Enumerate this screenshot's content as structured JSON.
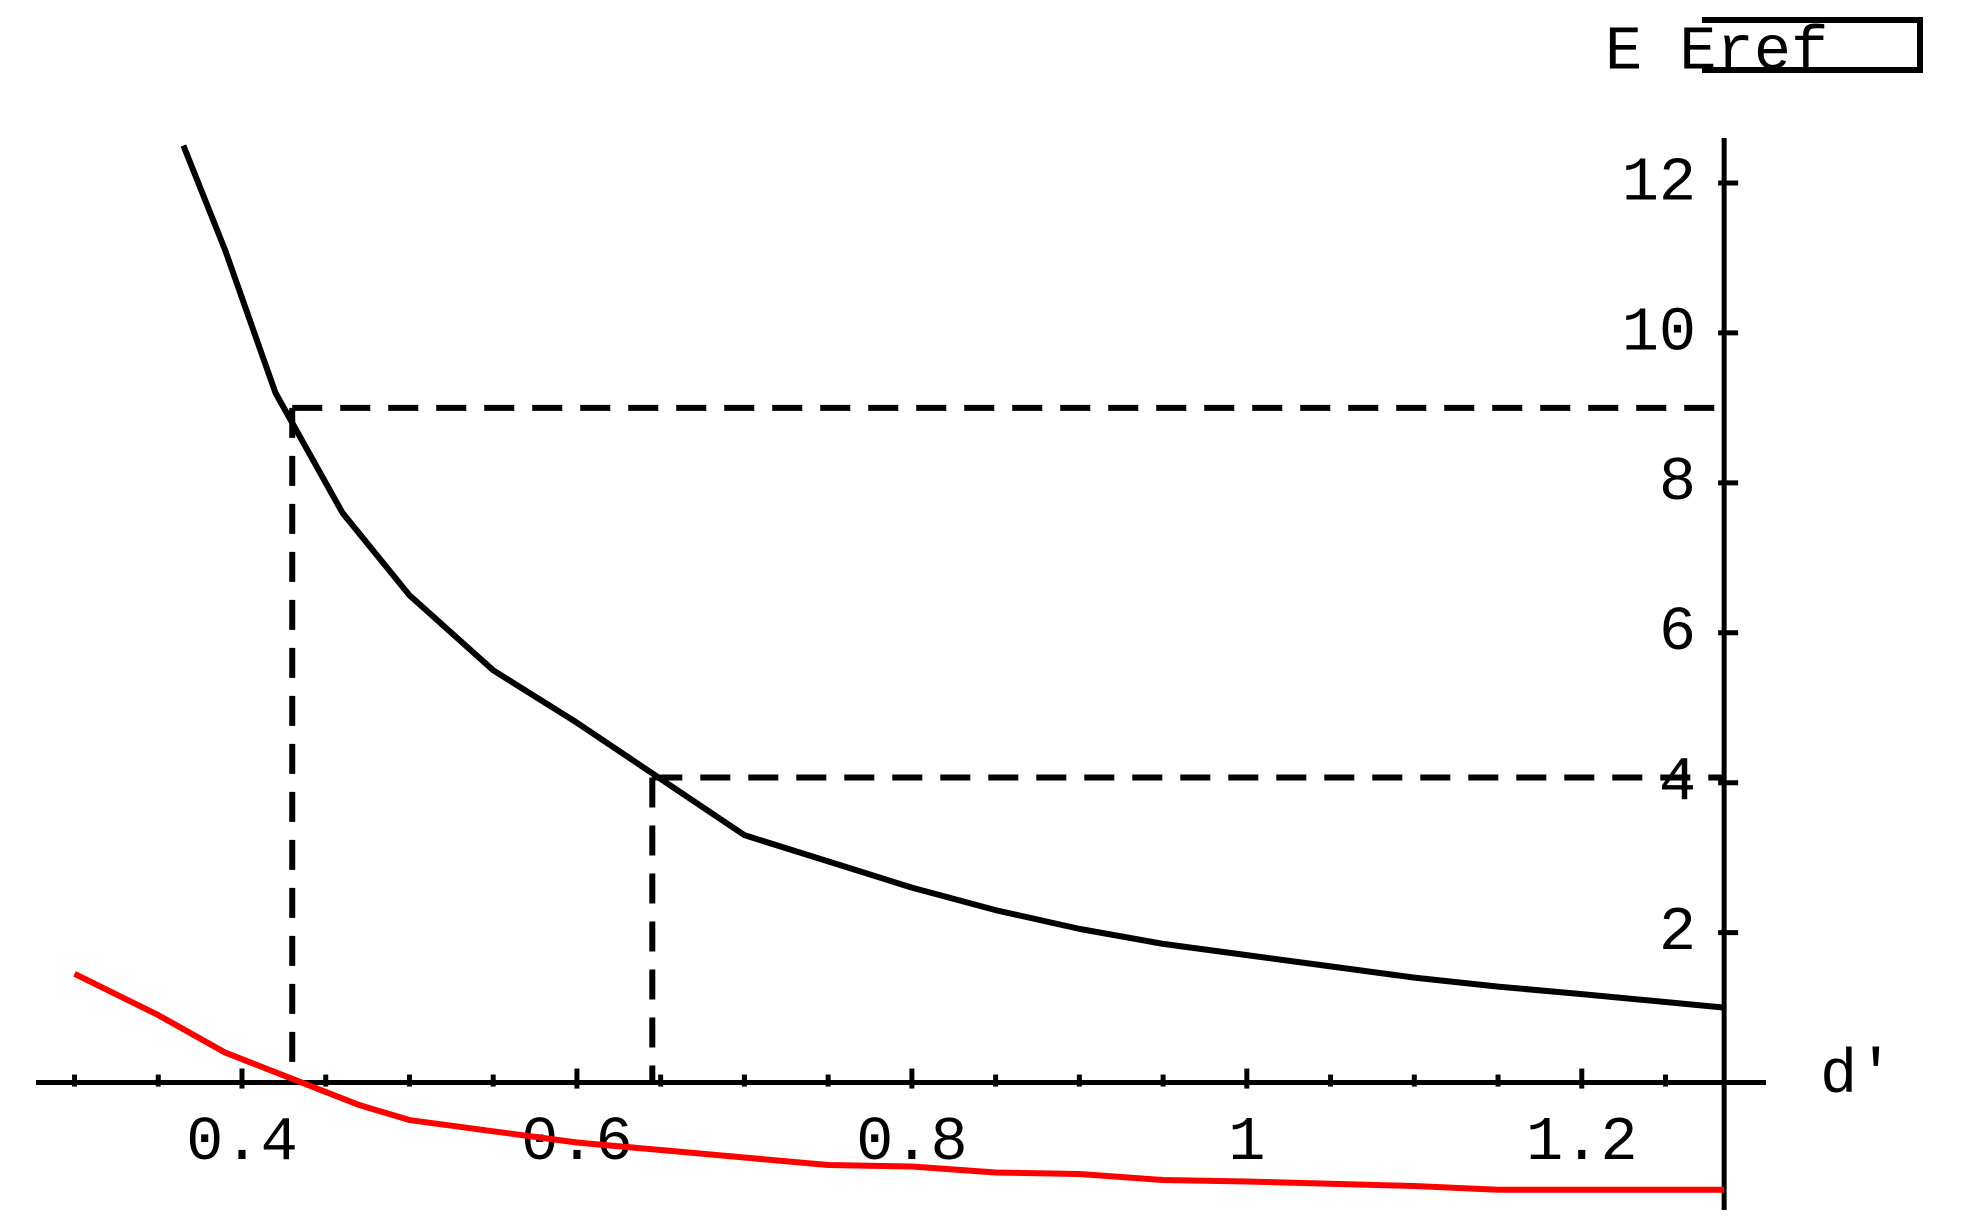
{
  "chart_data": {
    "type": "line",
    "x_label": "d'",
    "y_label": "E Eref",
    "xlim": [
      0.277,
      1.31
    ],
    "ylim": [
      -1.7,
      12.6
    ],
    "xticks": [
      0.4,
      0.6,
      0.8,
      1,
      1.2
    ],
    "xminorticks": [
      0.3,
      0.35,
      0.45,
      0.5,
      0.55,
      0.65,
      0.7,
      0.75,
      0.85,
      0.9,
      0.95,
      1.05,
      1.1,
      1.15,
      1.25
    ],
    "yticks": [
      2,
      4,
      6,
      8,
      10,
      12
    ],
    "axes_origin": [
      1.285,
      0
    ],
    "series": [
      {
        "color": "#000000",
        "x": [
          0.365,
          0.39,
          0.42,
          0.46,
          0.5,
          0.55,
          0.6,
          0.64,
          0.7,
          0.75,
          0.8,
          0.85,
          0.9,
          0.95,
          1.0,
          1.05,
          1.1,
          1.15,
          1.2,
          1.285
        ],
        "values": [
          12.5,
          11.1,
          9.2,
          7.6,
          6.5,
          5.5,
          4.8,
          4.2,
          3.3,
          2.95,
          2.6,
          2.3,
          2.05,
          1.85,
          1.7,
          1.55,
          1.4,
          1.28,
          1.18,
          1.0
        ]
      },
      {
        "color": "#ff0000",
        "x": [
          0.3,
          0.35,
          0.39,
          0.43,
          0.47,
          0.5,
          0.55,
          0.6,
          0.65,
          0.7,
          0.75,
          0.8,
          0.85,
          0.9,
          0.95,
          1.0,
          1.05,
          1.1,
          1.15,
          1.2,
          1.285
        ],
        "values": [
          1.45,
          0.9,
          0.4,
          0.05,
          -0.3,
          -0.5,
          -0.65,
          -0.8,
          -0.9,
          -1.0,
          -1.1,
          -1.12,
          -1.2,
          -1.22,
          -1.3,
          -1.32,
          -1.35,
          -1.38,
          -1.43,
          -1.43,
          -1.43
        ]
      }
    ],
    "guides": [
      {
        "x": 0.43,
        "y": 9
      },
      {
        "x": 0.645,
        "y": 4.07
      }
    ]
  }
}
